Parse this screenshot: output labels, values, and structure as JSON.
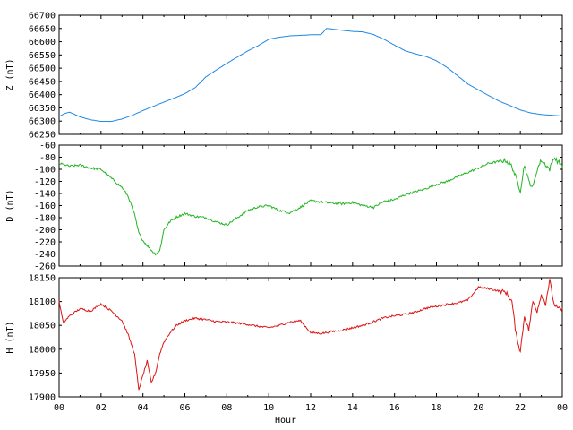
{
  "chart_data": [
    {
      "type": "line",
      "ylabel": "Z (nT)",
      "color": "#1e88e5",
      "ylim": [
        66250,
        66700
      ],
      "yticks": [
        66250,
        66300,
        66350,
        66400,
        66450,
        66500,
        66550,
        66600,
        66650,
        66700
      ],
      "xlim": [
        0,
        24
      ],
      "series": [
        {
          "x": [
            0,
            0.25,
            0.5,
            0.75,
            1,
            1.5,
            2,
            2.5,
            3,
            3.5,
            4,
            4.5,
            5,
            5.5,
            6,
            6.5,
            7,
            7.5,
            8,
            8.5,
            9,
            9.5,
            10,
            10.5,
            11,
            11.5,
            12,
            12.5,
            12.75,
            13,
            13.5,
            14,
            14.5,
            15,
            15.5,
            16,
            16.5,
            17,
            17.5,
            18,
            18.5,
            19,
            19.5,
            20,
            20.5,
            21,
            21.5,
            22,
            22.5,
            23,
            23.5,
            24
          ],
          "values": [
            66317,
            66328,
            66334,
            66325,
            66316,
            66305,
            66299,
            66299,
            66308,
            66322,
            66340,
            66356,
            66372,
            66387,
            66404,
            66427,
            66467,
            66493,
            66518,
            66542,
            66565,
            66585,
            66609,
            66617,
            66622,
            66624,
            66626,
            66627,
            66650,
            66648,
            66643,
            66639,
            66637,
            66627,
            66609,
            66587,
            66566,
            66554,
            66544,
            66528,
            66503,
            66472,
            66440,
            66418,
            66396,
            66375,
            66359,
            66342,
            66331,
            66325,
            66322,
            66319
          ]
        }
      ]
    },
    {
      "type": "line",
      "ylabel": "D (nT)",
      "color": "#22b422",
      "ylim": [
        -260,
        -60
      ],
      "yticks": [
        -260,
        -240,
        -220,
        -200,
        -180,
        -160,
        -140,
        -120,
        -100,
        -80,
        -60
      ],
      "xlim": [
        0,
        24
      ],
      "series": [
        {
          "x": [
            0,
            0.5,
            1,
            1.5,
            2,
            2.5,
            3,
            3.3,
            3.6,
            3.8,
            4,
            4.2,
            4.4,
            4.6,
            4.8,
            5,
            5.3,
            5.6,
            6,
            6.5,
            7,
            7.5,
            8,
            8.5,
            9,
            9.5,
            10,
            10.5,
            11,
            11.5,
            12,
            12.5,
            13,
            13.5,
            14,
            14.5,
            15,
            15.5,
            16,
            16.5,
            17,
            17.5,
            18,
            18.5,
            19,
            19.5,
            20,
            20.5,
            21,
            21.3,
            21.6,
            21.8,
            22,
            22.2,
            22.4,
            22.6,
            22.8,
            23,
            23.2,
            23.4,
            23.6,
            23.8,
            24
          ],
          "values": [
            -90,
            -95,
            -93,
            -98,
            -100,
            -115,
            -130,
            -145,
            -175,
            -205,
            -218,
            -226,
            -234,
            -240,
            -235,
            -200,
            -186,
            -179,
            -173,
            -178,
            -180,
            -187,
            -192,
            -180,
            -168,
            -162,
            -160,
            -168,
            -172,
            -163,
            -152,
            -154,
            -156,
            -157,
            -155,
            -160,
            -163,
            -153,
            -150,
            -142,
            -137,
            -132,
            -125,
            -120,
            -112,
            -105,
            -98,
            -90,
            -87,
            -85,
            -95,
            -115,
            -135,
            -92,
            -120,
            -130,
            -100,
            -85,
            -92,
            -100,
            -80,
            -88,
            -93
          ]
        }
      ]
    },
    {
      "type": "line",
      "ylabel": "H (nT)",
      "color": "#dc1414",
      "ylim": [
        17900,
        18150
      ],
      "yticks": [
        17900,
        17950,
        18000,
        18050,
        18100,
        18150
      ],
      "xlim": [
        0,
        24
      ],
      "series": [
        {
          "x": [
            0,
            0.2,
            0.5,
            1,
            1.5,
            2,
            2.5,
            3,
            3.3,
            3.6,
            3.8,
            4,
            4.2,
            4.4,
            4.6,
            4.8,
            5,
            5.3,
            5.6,
            6,
            6.5,
            7,
            7.5,
            8,
            8.5,
            9,
            9.5,
            10,
            10.5,
            11,
            11.5,
            12,
            12.5,
            13,
            13.5,
            14,
            14.5,
            15,
            15.5,
            16,
            16.5,
            17,
            17.5,
            18,
            18.5,
            19,
            19.5,
            20,
            20.5,
            21,
            21.3,
            21.6,
            21.8,
            22,
            22.2,
            22.4,
            22.6,
            22.8,
            23,
            23.2,
            23.4,
            23.6,
            23.8,
            24
          ],
          "values": [
            18100,
            18055,
            18070,
            18085,
            18080,
            18095,
            18080,
            18060,
            18030,
            17990,
            17915,
            17945,
            17975,
            17930,
            17950,
            17990,
            18015,
            18035,
            18050,
            18060,
            18065,
            18062,
            18058,
            18057,
            18055,
            18052,
            18048,
            18045,
            18050,
            18057,
            18060,
            18035,
            18033,
            18037,
            18040,
            18045,
            18050,
            18058,
            18066,
            18070,
            18073,
            18078,
            18086,
            18090,
            18094,
            18097,
            18103,
            18130,
            18127,
            18122,
            18120,
            18100,
            18030,
            17995,
            18070,
            18040,
            18100,
            18080,
            18115,
            18095,
            18145,
            18095,
            18085,
            18083
          ]
        }
      ]
    }
  ],
  "x_axis": {
    "label": "Hour",
    "tick_labels": [
      "00",
      "02",
      "04",
      "06",
      "08",
      "10",
      "12",
      "14",
      "16",
      "18",
      "20",
      "22",
      "00"
    ]
  }
}
